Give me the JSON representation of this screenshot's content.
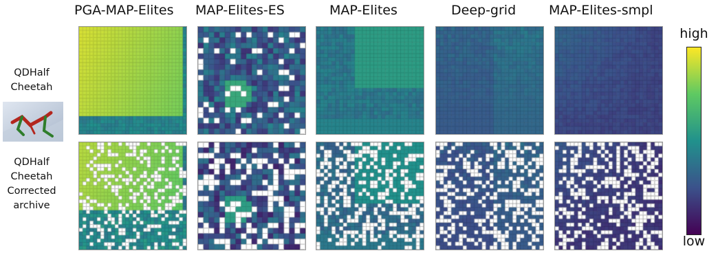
{
  "columns": [
    {
      "title": "PGA-MAP-Elites"
    },
    {
      "title": "MAP-Elites-ES"
    },
    {
      "title": "MAP-Elites"
    },
    {
      "title": "Deep-grid"
    },
    {
      "title": "MAP-Elites-smpl"
    }
  ],
  "rows": [
    {
      "label_lines": [
        "QDHalf",
        "Cheetah"
      ]
    },
    {
      "label_lines": [
        "QDHalf",
        "Cheetah",
        "Corrected",
        "archive"
      ]
    }
  ],
  "colorbar": {
    "high": "high",
    "low": "low",
    "colormap": "viridis"
  },
  "icons": {
    "robot": "half-cheetah-robot-icon"
  },
  "panel_levels": {
    "row1": {
      "PGA-MAP-Elites": 0.8,
      "MAP-Elites-ES": 0.3,
      "MAP-Elites": 0.45,
      "Deep-grid": 0.32,
      "MAP-Elites-smpl": 0.25
    },
    "row2": {
      "PGA-MAP-Elites": 0.75,
      "MAP-Elites-ES": 0.3,
      "MAP-Elites": 0.35,
      "Deep-grid": 0.18,
      "MAP-Elites-smpl": 0.2
    }
  }
}
